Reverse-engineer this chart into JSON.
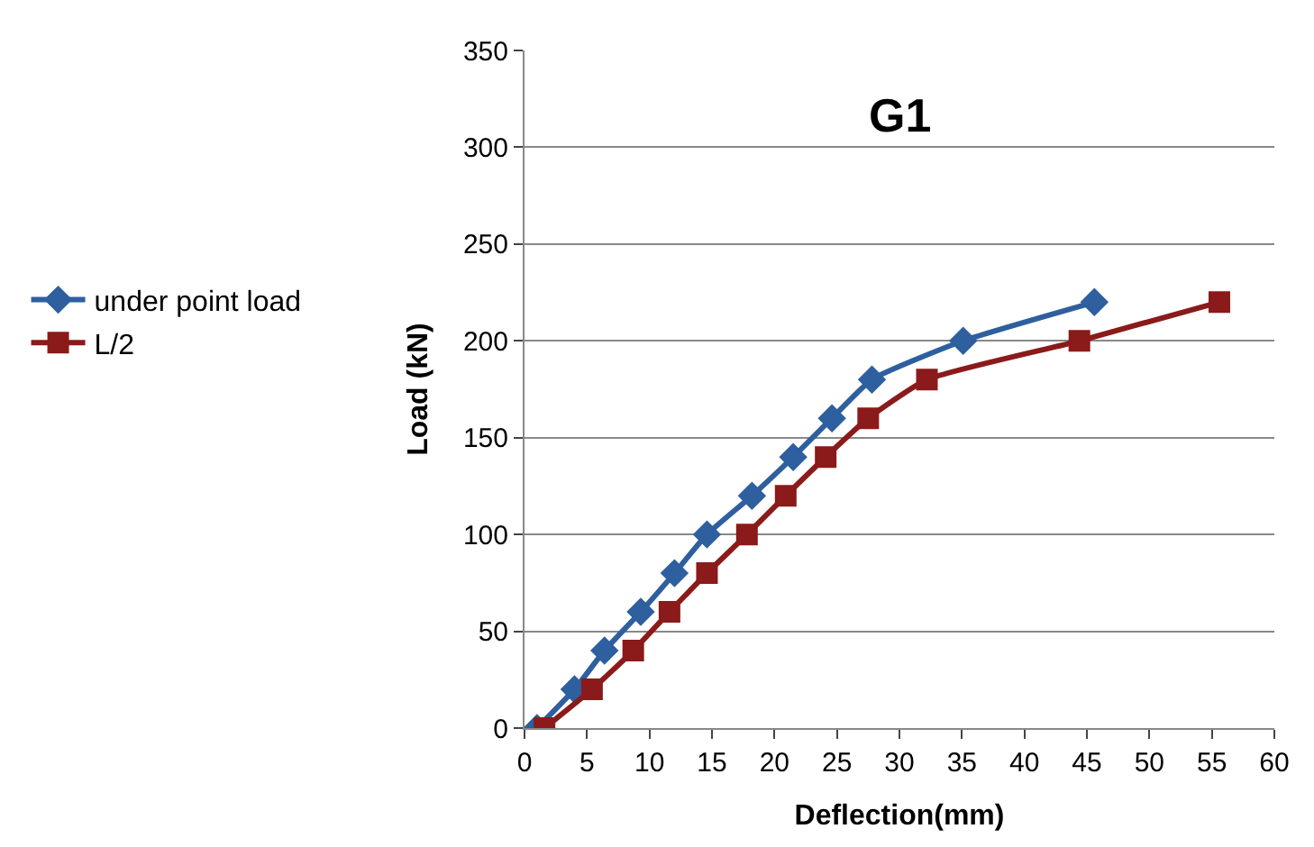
{
  "chart_data": {
    "type": "line",
    "title": "G1",
    "xlabel": "Deflection(mm)",
    "ylabel": "Load (kN)",
    "xlim": [
      0,
      60
    ],
    "xticks": [
      0,
      5,
      10,
      15,
      20,
      25,
      30,
      35,
      40,
      45,
      50,
      55,
      60
    ],
    "ylim": [
      0,
      350
    ],
    "yticks": [
      0,
      50,
      100,
      150,
      200,
      250,
      300,
      350
    ],
    "grid": "y",
    "legend": "left",
    "series": [
      {
        "name": "under point load",
        "color": "#2e5f9e",
        "marker": "diamond",
        "x": [
          1.0,
          4.0,
          6.4,
          9.3,
          12.0,
          14.6,
          18.2,
          21.5,
          24.6,
          27.8,
          35.1,
          45.6
        ],
        "values": [
          0,
          20,
          40,
          60,
          80,
          100,
          120,
          140,
          160,
          180,
          200,
          220
        ]
      },
      {
        "name": "L/2",
        "color": "#8b1a1a",
        "marker": "square",
        "x": [
          1.6,
          5.4,
          8.7,
          11.6,
          14.6,
          17.8,
          20.9,
          24.1,
          27.5,
          32.2,
          44.4,
          55.6
        ],
        "values": [
          0,
          20,
          40,
          60,
          80,
          100,
          120,
          140,
          160,
          180,
          200,
          220
        ]
      }
    ]
  }
}
